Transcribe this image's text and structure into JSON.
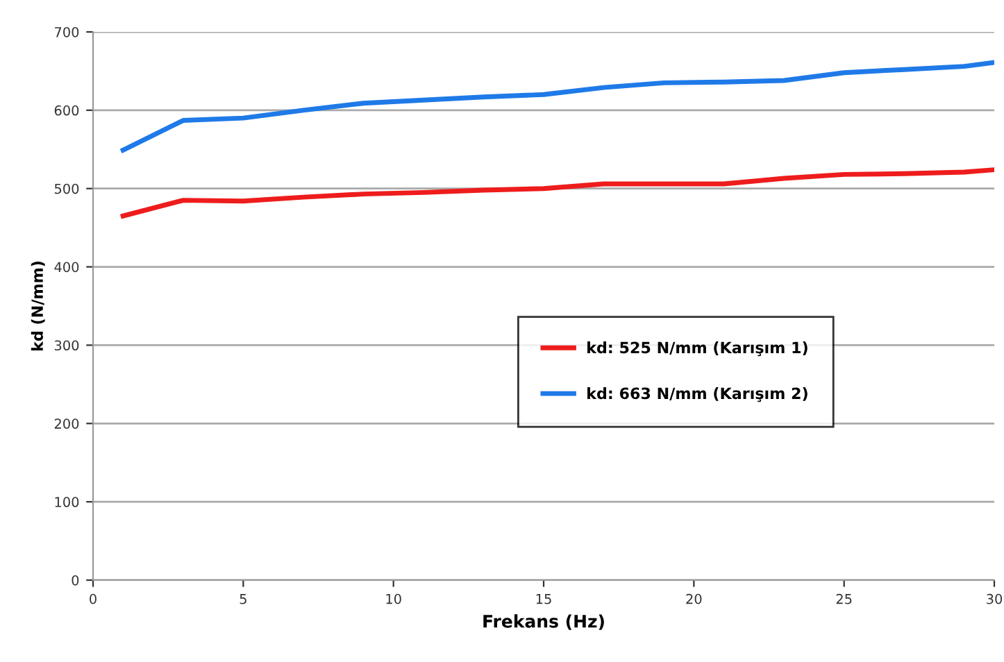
{
  "chart_data": {
    "type": "line",
    "xlabel": "Frekans (Hz)",
    "ylabel": "kd (N/mm)",
    "x": [
      1,
      3,
      5,
      7,
      9,
      11,
      13,
      15,
      17,
      19,
      21,
      23,
      25,
      27,
      29,
      30
    ],
    "series": [
      {
        "name": "kd: 525 N/mm (Karışım 1)",
        "color": "#ee1c1c",
        "values": [
          465,
          485,
          484,
          489,
          493,
          495,
          498,
          500,
          506,
          506,
          506,
          513,
          518,
          519,
          521,
          524
        ]
      },
      {
        "name": "kd: 663 N/mm (Karışım 2)",
        "color": "#1f7ae8",
        "values": [
          549,
          587,
          590,
          600,
          609,
          613,
          617,
          620,
          629,
          635,
          636,
          638,
          648,
          652,
          656,
          661
        ]
      }
    ],
    "xlim": [
      0,
      30
    ],
    "xticks": [
      0,
      5,
      10,
      15,
      20,
      25,
      30
    ],
    "ylim": [
      0,
      700
    ],
    "yticks": [
      0,
      100,
      200,
      300,
      400,
      500,
      600,
      700
    ],
    "grid": "y",
    "legend": "center right",
    "marker": "none",
    "line_style": "solid"
  }
}
